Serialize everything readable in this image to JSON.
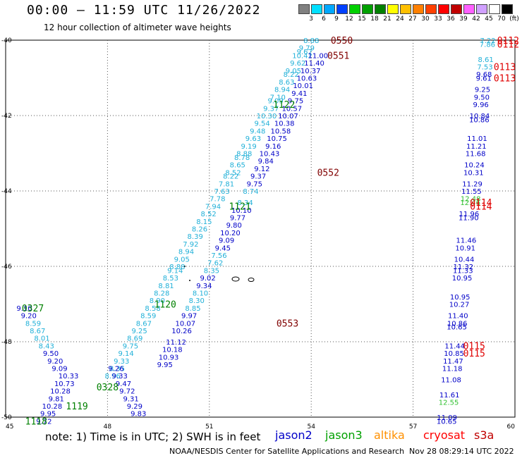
{
  "header": {
    "title": "00:00 – 11:59 UTC 11/26/2022",
    "subtitle": "12 hour collection of altimeter wave heights"
  },
  "legend": {
    "unit": "(ft)",
    "items": [
      {
        "label": "3",
        "color": "#808080"
      },
      {
        "label": "6",
        "color": "#00e0ff"
      },
      {
        "label": "9",
        "color": "#00a8ff"
      },
      {
        "label": "12",
        "color": "#0040ff"
      },
      {
        "label": "15",
        "color": "#00d000"
      },
      {
        "label": "18",
        "color": "#00a000"
      },
      {
        "label": "21",
        "color": "#008000"
      },
      {
        "label": "24",
        "color": "#ffff00"
      },
      {
        "label": "27",
        "color": "#ffc000"
      },
      {
        "label": "30",
        "color": "#ff8000"
      },
      {
        "label": "33",
        "color": "#ff4000"
      },
      {
        "label": "36",
        "color": "#ff0000"
      },
      {
        "label": "39",
        "color": "#c00000"
      },
      {
        "label": "42",
        "color": "#ff60ff"
      },
      {
        "label": "45",
        "color": "#d0a0ff"
      },
      {
        "label": "70",
        "color": "#ffffff"
      },
      {
        "label": "",
        "color": "#000000"
      }
    ]
  },
  "axes": {
    "lat_labels": [
      "-40",
      "-42",
      "-44",
      "-46",
      "-48",
      "-50"
    ],
    "lon_labels": [
      "45",
      "48",
      "51",
      "54",
      "57",
      "60"
    ]
  },
  "colors": {
    "jason2": "#0000c8",
    "jason3": "#00a000",
    "altika": "#ff9000",
    "cryosat": "#ff0000",
    "s3a": "#c00000",
    "cyan_values": "#20b0d8",
    "darkred_times": "#800000",
    "green_times": "#008000",
    "red_times": "#e00000"
  },
  "tracks": [
    {
      "name": "track-1121",
      "color": "#20b0d8",
      "points": [
        [
          "8.88",
          "-40.0"
        ],
        [
          "9.79",
          "-40.2"
        ],
        [
          "9.67",
          "-40.3"
        ],
        [
          "10.42",
          "-40.4"
        ],
        [
          "9.62",
          "-40.6"
        ],
        [
          "9.05",
          "-40.8"
        ],
        [
          "8.22",
          "-40.9"
        ],
        [
          "8.63",
          "-41.1"
        ],
        [
          "8.94",
          "-41.3"
        ],
        [
          "7.10",
          "-41.5"
        ],
        [
          "9.09",
          "-41.6"
        ],
        [
          "9.37",
          "-41.8"
        ],
        [
          "10.30",
          "-42.0"
        ],
        [
          "9.54",
          "-42.2"
        ],
        [
          "9.48",
          "-42.4"
        ],
        [
          "9.63",
          "-42.6"
        ],
        [
          "9.19",
          "-42.8"
        ],
        [
          "8.88",
          "-43.0"
        ],
        [
          "8.78",
          "-43.1"
        ],
        [
          "8.65",
          "-43.3"
        ],
        [
          "8.52",
          "-43.5"
        ],
        [
          "8.22",
          "-43.6"
        ],
        [
          "7.81",
          "-43.8"
        ],
        [
          "7.63",
          "-44.0"
        ],
        [
          "7.78",
          "-44.2"
        ],
        [
          "7.94",
          "-44.4"
        ],
        [
          "8.52",
          "-44.6"
        ],
        [
          "8.15",
          "-44.8"
        ],
        [
          "8.26",
          "-45.0"
        ],
        [
          "8.39",
          "-45.2"
        ],
        [
          "7.92",
          "-45.4"
        ],
        [
          "8.94",
          "-45.6"
        ],
        [
          "9.05",
          "-45.8"
        ],
        [
          "8.88",
          "-46.0"
        ],
        [
          "9.14",
          "-46.1"
        ],
        [
          "8.53",
          "-46.3"
        ],
        [
          "8.81",
          "-46.5"
        ],
        [
          "8.28",
          "-46.7"
        ],
        [
          "8.90",
          "-46.9"
        ],
        [
          "8.58",
          "-47.1"
        ],
        [
          "8.59",
          "-47.3"
        ],
        [
          "8.67",
          "-47.5"
        ],
        [
          "9.25",
          "-47.7"
        ],
        [
          "8.69",
          "-47.9"
        ],
        [
          "9.75",
          "-48.1"
        ],
        [
          "9.14",
          "-48.3"
        ],
        [
          "9.33",
          "-48.5"
        ],
        [
          "8.35",
          "-48.7"
        ],
        [
          "8.96",
          "-48.9"
        ]
      ]
    },
    {
      "name": "track-1122",
      "color": "#0000c8",
      "points": [
        [
          "11.00",
          "-40.4"
        ],
        [
          "11.40",
          "-40.6"
        ],
        [
          "10.37",
          "-40.8"
        ],
        [
          "10.63",
          "-41.0"
        ],
        [
          "10.01",
          "-41.2"
        ],
        [
          "9.41",
          "-41.4"
        ],
        [
          "9.75",
          "-41.6"
        ],
        [
          "10.57",
          "-41.8"
        ],
        [
          "10.07",
          "-42.0"
        ],
        [
          "10.38",
          "-42.2"
        ],
        [
          "10.58",
          "-42.4"
        ],
        [
          "10.75",
          "-42.6"
        ],
        [
          "9.16",
          "-42.8"
        ],
        [
          "10.43",
          "-43.0"
        ],
        [
          "9.84",
          "-43.2"
        ],
        [
          "9.12",
          "-43.4"
        ],
        [
          "9.37",
          "-43.6"
        ],
        [
          "9.75",
          "-43.8"
        ],
        [
          "8.74",
          "-44.0"
        ],
        [
          "8.34",
          "-44.3"
        ],
        [
          "10.10",
          "-44.5"
        ],
        [
          "9.77",
          "-44.7"
        ],
        [
          "9.80",
          "-44.9"
        ],
        [
          "10.20",
          "-45.1"
        ],
        [
          "9.09",
          "-45.3"
        ],
        [
          "9.45",
          "-45.5"
        ],
        [
          "7.56",
          "-45.7"
        ],
        [
          "7.62",
          "-45.9"
        ],
        [
          "8.35",
          "-46.1"
        ],
        [
          "9.02",
          "-46.3"
        ],
        [
          "9.34",
          "-46.5"
        ],
        [
          "8.10",
          "-46.7"
        ],
        [
          "8.30",
          "-46.9"
        ],
        [
          "8.85",
          "-47.1"
        ],
        [
          "9.97",
          "-47.3"
        ],
        [
          "10.07",
          "-47.5"
        ],
        [
          "10.26",
          "-47.7"
        ],
        [
          "11.12",
          "-48.0"
        ],
        [
          "10.18",
          "-48.2"
        ],
        [
          "10.93",
          "-48.4"
        ],
        [
          "9.95",
          "-48.6"
        ]
      ]
    },
    {
      "name": "track-0327",
      "color": "#0000c8",
      "points": [
        [
          "9.10",
          "-47.1"
        ],
        [
          "9.20",
          "-47.3"
        ],
        [
          "8.59",
          "-47.5"
        ],
        [
          "8.67",
          "-47.7"
        ],
        [
          "8.01",
          "-47.9"
        ],
        [
          "8.43",
          "-48.1"
        ],
        [
          "9.50",
          "-48.3"
        ],
        [
          "9.20",
          "-48.5"
        ],
        [
          "9.09",
          "-48.7"
        ],
        [
          "10.33",
          "-48.9"
        ],
        [
          "10.73",
          "-49.1"
        ],
        [
          "10.28",
          "-49.3"
        ],
        [
          "9.81",
          "-49.5"
        ],
        [
          "10.28",
          "-49.7"
        ],
        [
          "9.95",
          "-49.9"
        ],
        [
          "9.72",
          "-50.1"
        ]
      ]
    },
    {
      "name": "track-0328",
      "color": "#0000c8",
      "points": [
        [
          "9.26",
          "-48.7"
        ],
        [
          "9.33",
          "-48.9"
        ],
        [
          "9.47",
          "-49.1"
        ],
        [
          "9.72",
          "-49.3"
        ],
        [
          "9.31",
          "-49.5"
        ],
        [
          "9.29",
          "-49.7"
        ],
        [
          "9.83",
          "-49.9"
        ]
      ]
    },
    {
      "name": "track-0112",
      "color": "#0000c8",
      "points": [
        [
          "7.22",
          "-40.0"
        ],
        [
          "7.86",
          "-40.1"
        ],
        [
          "8.61",
          "-40.5"
        ],
        [
          "7.53",
          "-40.7"
        ],
        [
          "9.68",
          "-40.9"
        ],
        [
          "9.61",
          "-41.0"
        ],
        [
          "9.25",
          "-41.3"
        ],
        [
          "9.50",
          "-41.5"
        ],
        [
          "9.96",
          "-41.7"
        ],
        [
          "10.84",
          "-42.0"
        ],
        [
          "10.86",
          "-42.1"
        ],
        [
          "11.01",
          "-42.6"
        ],
        [
          "11.21",
          "-42.8"
        ],
        [
          "11.68",
          "-43.0"
        ],
        [
          "10.24",
          "-43.3"
        ],
        [
          "10.31",
          "-43.5"
        ],
        [
          "11.29",
          "-43.8"
        ],
        [
          "11.55",
          "-44.0"
        ],
        [
          "12.48",
          "-44.2"
        ],
        [
          "12.46",
          "-44.3"
        ],
        [
          "11.96",
          "-44.6"
        ],
        [
          "11.90",
          "-44.7"
        ],
        [
          "11.46",
          "-45.3"
        ],
        [
          "10.91",
          "-45.5"
        ],
        [
          "10.44",
          "-45.8"
        ],
        [
          "11.32",
          "-46.0"
        ],
        [
          "11.33",
          "-46.1"
        ],
        [
          "10.95",
          "-46.3"
        ],
        [
          "10.95",
          "-46.8"
        ],
        [
          "10.27",
          "-47.0"
        ],
        [
          "11.40",
          "-47.3"
        ],
        [
          "10.86",
          "-47.5"
        ],
        [
          "10.65",
          "-47.6"
        ],
        [
          "11.44",
          "-48.1"
        ],
        [
          "10.85",
          "-48.3"
        ],
        [
          "11.47",
          "-48.5"
        ],
        [
          "11.18",
          "-48.7"
        ],
        [
          "11.08",
          "-49.0"
        ],
        [
          "11.61",
          "-49.4"
        ],
        [
          "12.55",
          "-49.6"
        ],
        [
          "11.09",
          "-50.0"
        ],
        [
          "10.65",
          "-50.1"
        ]
      ]
    }
  ],
  "time_labels": [
    {
      "text": "0550",
      "color": "#800000",
      "lon": "54.9",
      "lat": "-40.0"
    },
    {
      "text": "0551",
      "color": "#800000",
      "lon": "54.8",
      "lat": "-40.4"
    },
    {
      "text": "1122",
      "color": "#008000",
      "lon": "53.2",
      "lat": "-41.7"
    },
    {
      "text": "0552",
      "color": "#800000",
      "lon": "54.5",
      "lat": "-43.5"
    },
    {
      "text": "1121",
      "color": "#008000",
      "lon": "51.9",
      "lat": "-44.4"
    },
    {
      "text": "1120",
      "color": "#008000",
      "lon": "49.7",
      "lat": "-47.0"
    },
    {
      "text": "0553",
      "color": "#800000",
      "lon": "53.3",
      "lat": "-47.5"
    },
    {
      "text": "0327",
      "color": "#008000",
      "lon": "45.8",
      "lat": "-47.1"
    },
    {
      "text": "0328",
      "color": "#008000",
      "lon": "48.0",
      "lat": "-49.2"
    },
    {
      "text": "1119",
      "color": "#008000",
      "lon": "47.1",
      "lat": "-49.7"
    },
    {
      "text": "1118",
      "color": "#008000",
      "lon": "45.9",
      "lat": "-50.1"
    },
    {
      "text": "0112",
      "color": "#e00000",
      "lon": "59.8",
      "lat": "-40.0"
    },
    {
      "text": "0112",
      "color": "#e00000",
      "lon": "59.8",
      "lat": "-40.1"
    },
    {
      "text": "0113",
      "color": "#e00000",
      "lon": "59.7",
      "lat": "-40.7"
    },
    {
      "text": "0113",
      "color": "#e00000",
      "lon": "59.7",
      "lat": "-41.0"
    },
    {
      "text": "0114",
      "color": "#e00000",
      "lon": "59.0",
      "lat": "-44.3"
    },
    {
      "text": "0114",
      "color": "#e00000",
      "lon": "59.0",
      "lat": "-44.4"
    },
    {
      "text": "0115",
      "color": "#e00000",
      "lon": "58.8",
      "lat": "-48.1"
    },
    {
      "text": "0115",
      "color": "#e00000",
      "lon": "58.8",
      "lat": "-48.3"
    }
  ],
  "footer": {
    "note": "note:  1) Time is in UTC;  2) SWH is in feet",
    "satellites": [
      {
        "label": "jason2",
        "color": "#0000c8"
      },
      {
        "label": "jason3",
        "color": "#00a000"
      },
      {
        "label": "altika",
        "color": "#ff9000"
      },
      {
        "label": "cryosat",
        "color": "#ff0000"
      },
      {
        "label": "s3a",
        "color": "#c00000"
      }
    ],
    "credit": "NOAA/NESDIS Center for Satellite Applications and Research",
    "timestamp": "Nov 28 08:29:14 UTC 2022"
  }
}
